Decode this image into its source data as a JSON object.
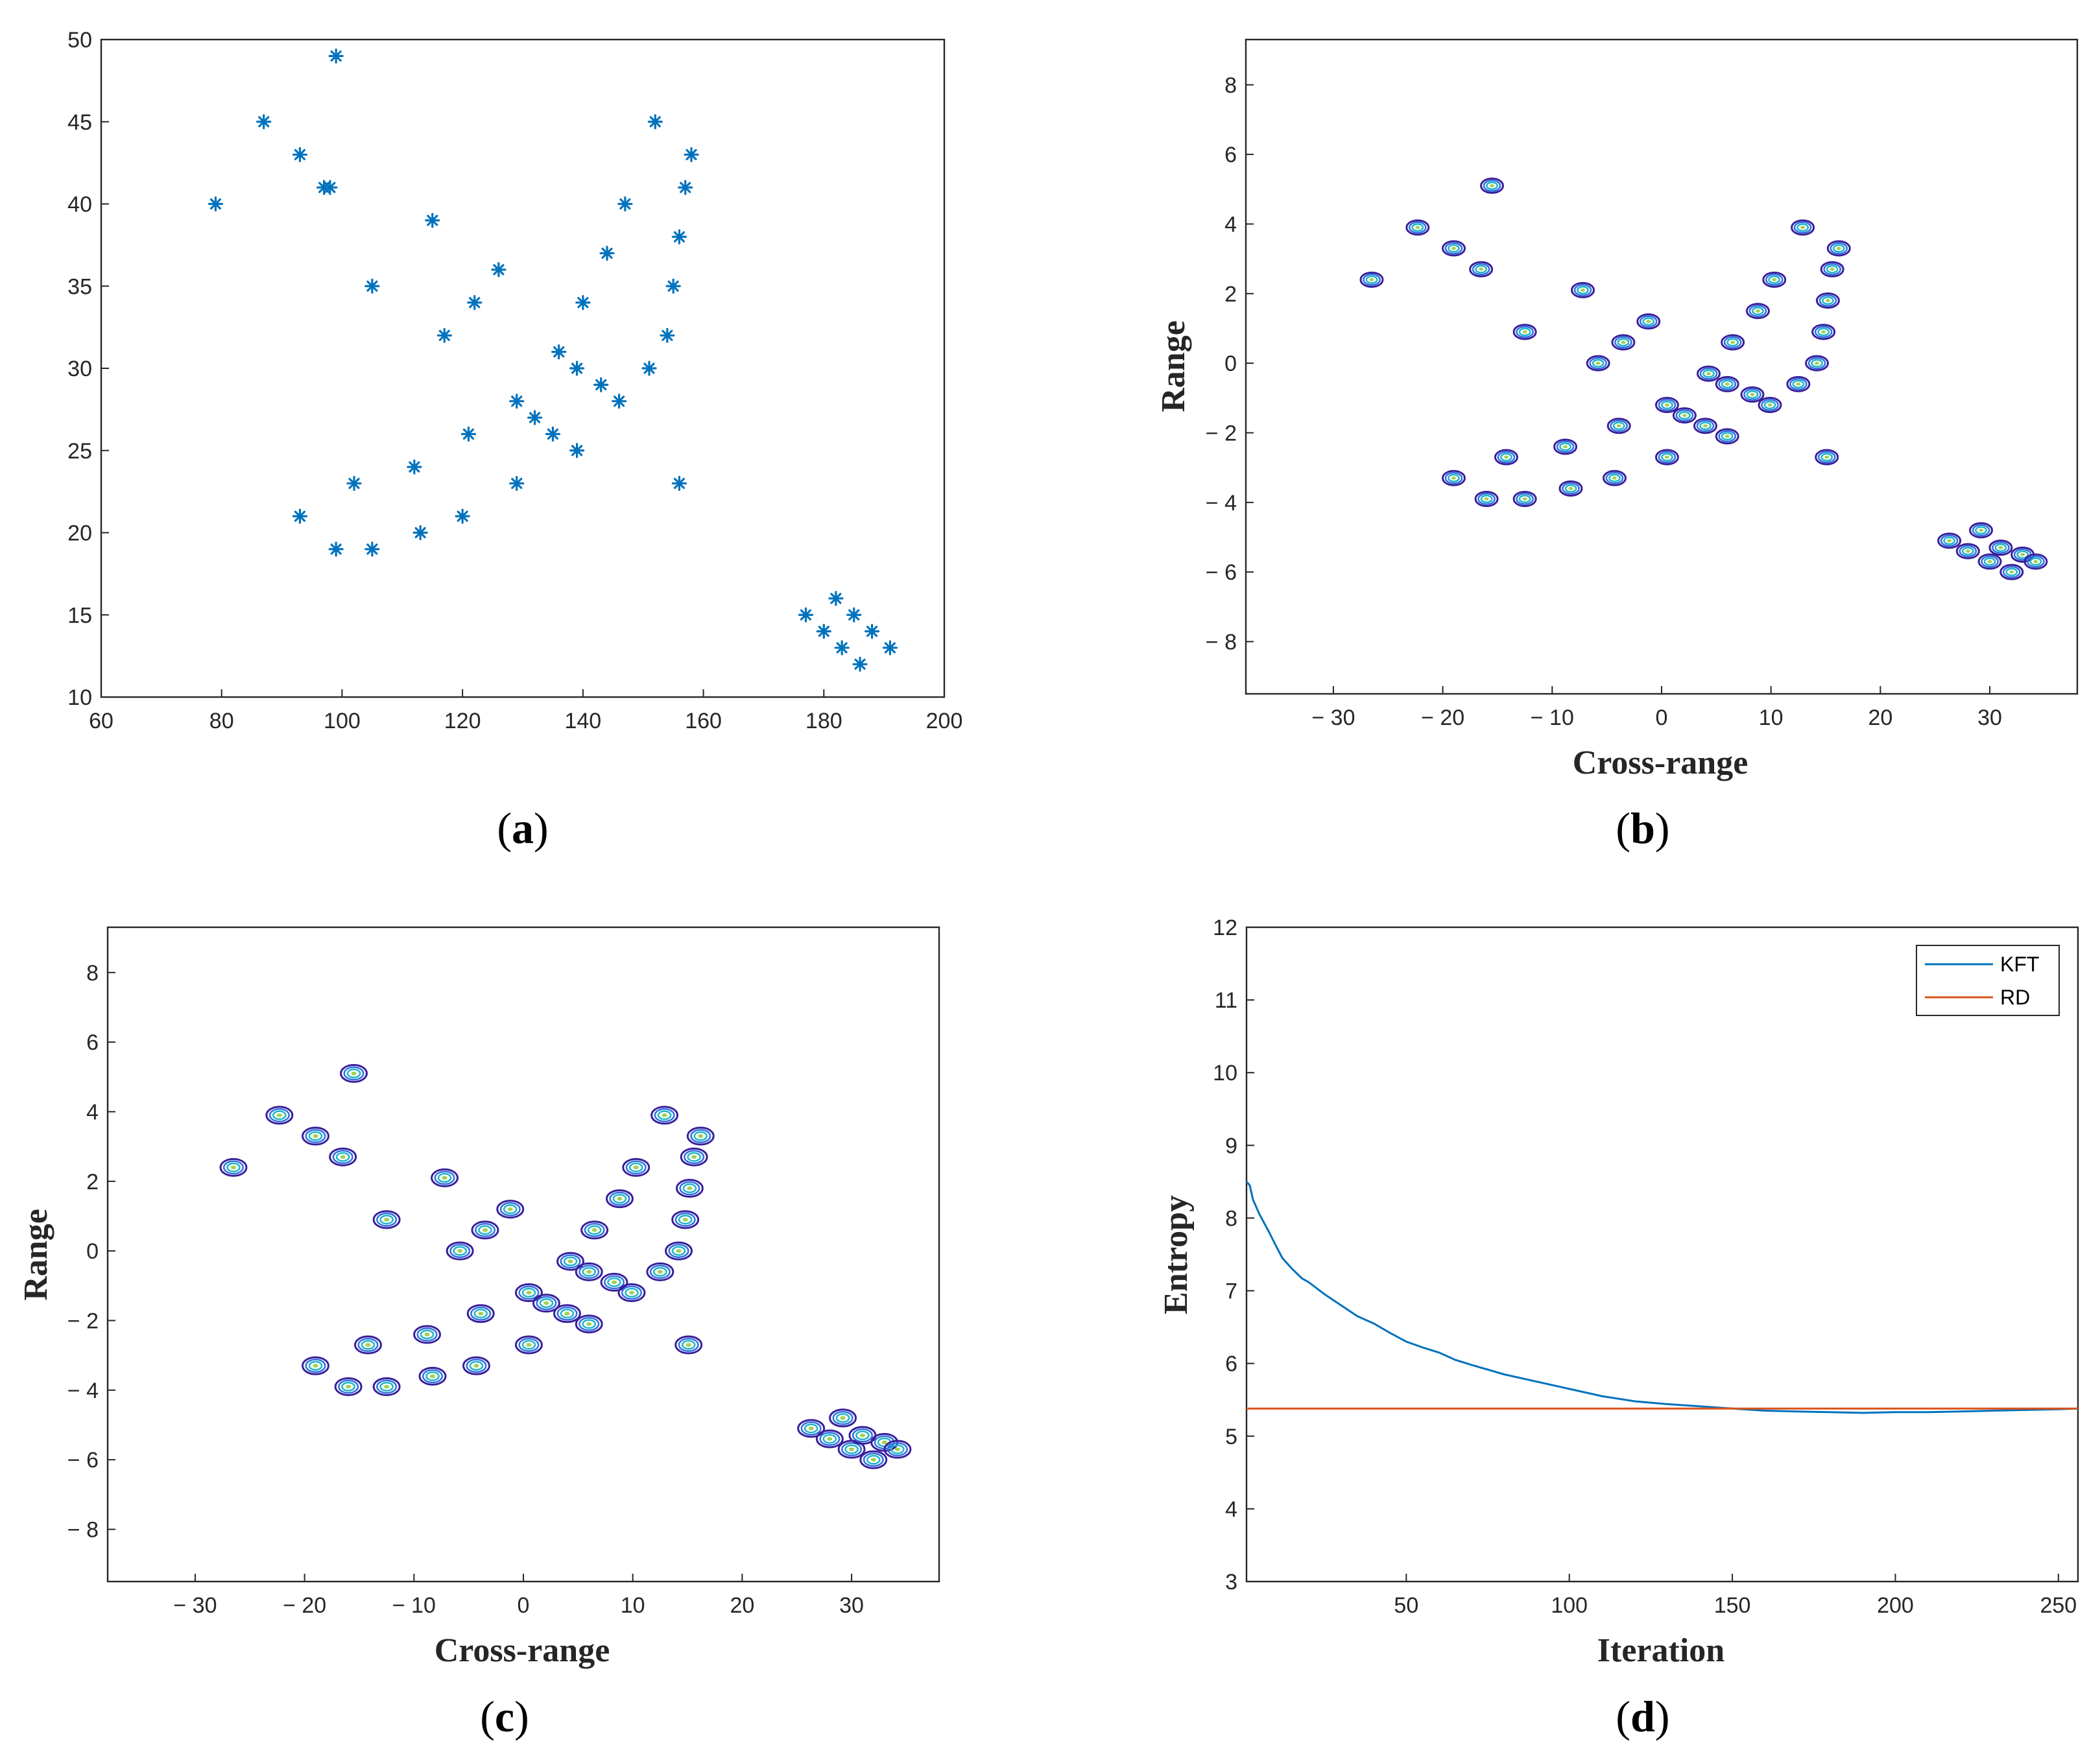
{
  "figure": {
    "panel_labels": [
      "a",
      "b",
      "c",
      "d"
    ]
  },
  "chart_data": [
    {
      "id": "a",
      "type": "scatter",
      "title": "",
      "xlabel": "",
      "ylabel": "",
      "xlim": [
        60,
        200
      ],
      "ylim": [
        10,
        50
      ],
      "xticks": [
        60,
        80,
        100,
        120,
        140,
        160,
        180,
        200
      ],
      "yticks": [
        10,
        15,
        20,
        25,
        30,
        35,
        40,
        45,
        50
      ],
      "marker": "asterisk",
      "color": "#0072BD",
      "points": [
        [
          79,
          40
        ],
        [
          87,
          45
        ],
        [
          93,
          43
        ],
        [
          97,
          41
        ],
        [
          98,
          41
        ],
        [
          99,
          49
        ],
        [
          105,
          35
        ],
        [
          115,
          39
        ],
        [
          117,
          32
        ],
        [
          122,
          34
        ],
        [
          126,
          36
        ],
        [
          102,
          23
        ],
        [
          93,
          21
        ],
        [
          99,
          19
        ],
        [
          105,
          19
        ],
        [
          112,
          24
        ],
        [
          113,
          20
        ],
        [
          120,
          21
        ],
        [
          121,
          26
        ],
        [
          129,
          28
        ],
        [
          129,
          23
        ],
        [
          132,
          27
        ],
        [
          135,
          26
        ],
        [
          136,
          31
        ],
        [
          139,
          30
        ],
        [
          139,
          25
        ],
        [
          140,
          34
        ],
        [
          143,
          29
        ],
        [
          144,
          37
        ],
        [
          146,
          28
        ],
        [
          147,
          40
        ],
        [
          151,
          30
        ],
        [
          152,
          45
        ],
        [
          154,
          32
        ],
        [
          155,
          35
        ],
        [
          156,
          38
        ],
        [
          156,
          23
        ],
        [
          157,
          41
        ],
        [
          158,
          43
        ],
        [
          177,
          15
        ],
        [
          180,
          14
        ],
        [
          182,
          16
        ],
        [
          183,
          13
        ],
        [
          185,
          15
        ],
        [
          186,
          12
        ],
        [
          188,
          14
        ],
        [
          191,
          13
        ]
      ]
    },
    {
      "id": "b",
      "type": "scatter",
      "title": "",
      "xlabel": "Cross-range",
      "ylabel": "Range",
      "xlim": [
        -38,
        38
      ],
      "ylim": [
        -9.5,
        9.3
      ],
      "xticks": [
        -30,
        -20,
        -10,
        0,
        10,
        20,
        30
      ],
      "xticklabels": [
        "− 30",
        "− 20",
        "− 10",
        "0",
        "10",
        "20",
        "30"
      ],
      "yticks": [
        -8,
        -6,
        -4,
        -2,
        0,
        2,
        4,
        6,
        8
      ],
      "yticklabels": [
        "− 8",
        "− 6",
        "− 4",
        "− 2",
        "0",
        "2",
        "4",
        "6",
        "8"
      ],
      "marker": "contour-blob",
      "points": [
        [
          -26.5,
          2.4
        ],
        [
          -22.3,
          3.9
        ],
        [
          -19,
          3.3
        ],
        [
          -16.5,
          2.7
        ],
        [
          -15.5,
          5.1
        ],
        [
          -12.5,
          0.9
        ],
        [
          -7.2,
          2.1
        ],
        [
          -5.8,
          0
        ],
        [
          -3.5,
          0.6
        ],
        [
          -1.2,
          1.2
        ],
        [
          -19,
          -3.3
        ],
        [
          -16,
          -3.9
        ],
        [
          -14.2,
          -2.7
        ],
        [
          -12.5,
          -3.9
        ],
        [
          -8.8,
          -2.4
        ],
        [
          -8.3,
          -3.6
        ],
        [
          -4.3,
          -3.3
        ],
        [
          -3.9,
          -1.8
        ],
        [
          0.5,
          -1.2
        ],
        [
          0.5,
          -2.7
        ],
        [
          2.1,
          -1.5
        ],
        [
          4.3,
          -0.3
        ],
        [
          4,
          -1.8
        ],
        [
          6,
          -0.6
        ],
        [
          6,
          -2.1
        ],
        [
          6.5,
          0.6
        ],
        [
          8.3,
          -0.9
        ],
        [
          8.8,
          1.5
        ],
        [
          9.9,
          -1.2
        ],
        [
          10.3,
          2.4
        ],
        [
          12.5,
          -0.6
        ],
        [
          12.9,
          3.9
        ],
        [
          14.2,
          0
        ],
        [
          14.8,
          0.9
        ],
        [
          15.2,
          1.8
        ],
        [
          15.1,
          -2.7
        ],
        [
          15.6,
          2.7
        ],
        [
          16.2,
          3.3
        ],
        [
          26.3,
          -5.1
        ],
        [
          28,
          -5.4
        ],
        [
          29.2,
          -4.8
        ],
        [
          30,
          -5.7
        ],
        [
          31,
          -5.3
        ],
        [
          32,
          -6
        ],
        [
          33,
          -5.5
        ],
        [
          34.2,
          -5.7
        ]
      ]
    },
    {
      "id": "c",
      "type": "scatter",
      "title": "",
      "xlabel": "Cross-range",
      "ylabel": "Range",
      "xlim": [
        -38,
        38
      ],
      "ylim": [
        -9.5,
        9.3
      ],
      "xticks": [
        -30,
        -20,
        -10,
        0,
        10,
        20,
        30
      ],
      "xticklabels": [
        "− 30",
        "− 20",
        "− 10",
        "0",
        "10",
        "20",
        "30"
      ],
      "yticks": [
        -8,
        -6,
        -4,
        -2,
        0,
        2,
        4,
        6,
        8
      ],
      "yticklabels": [
        "− 8",
        "− 6",
        "− 4",
        "− 2",
        "0",
        "2",
        "4",
        "6",
        "8"
      ],
      "marker": "contour-blob",
      "points": [
        [
          -26.5,
          2.4
        ],
        [
          -22.3,
          3.9
        ],
        [
          -19,
          3.3
        ],
        [
          -16.5,
          2.7
        ],
        [
          -15.5,
          5.1
        ],
        [
          -12.5,
          0.9
        ],
        [
          -7.2,
          2.1
        ],
        [
          -5.8,
          0
        ],
        [
          -3.5,
          0.6
        ],
        [
          -1.2,
          1.2
        ],
        [
          -19,
          -3.3
        ],
        [
          -16,
          -3.9
        ],
        [
          -14.2,
          -2.7
        ],
        [
          -12.5,
          -3.9
        ],
        [
          -8.8,
          -2.4
        ],
        [
          -8.3,
          -3.6
        ],
        [
          -4.3,
          -3.3
        ],
        [
          -3.9,
          -1.8
        ],
        [
          0.5,
          -1.2
        ],
        [
          0.5,
          -2.7
        ],
        [
          2.1,
          -1.5
        ],
        [
          4.3,
          -0.3
        ],
        [
          4,
          -1.8
        ],
        [
          6,
          -0.6
        ],
        [
          6,
          -2.1
        ],
        [
          6.5,
          0.6
        ],
        [
          8.3,
          -0.9
        ],
        [
          8.8,
          1.5
        ],
        [
          9.9,
          -1.2
        ],
        [
          10.3,
          2.4
        ],
        [
          12.5,
          -0.6
        ],
        [
          12.9,
          3.9
        ],
        [
          14.2,
          0
        ],
        [
          14.8,
          0.9
        ],
        [
          15.2,
          1.8
        ],
        [
          15.1,
          -2.7
        ],
        [
          15.6,
          2.7
        ],
        [
          16.2,
          3.3
        ],
        [
          26.3,
          -5.1
        ],
        [
          28,
          -5.4
        ],
        [
          29.2,
          -4.8
        ],
        [
          30,
          -5.7
        ],
        [
          31,
          -5.3
        ],
        [
          32,
          -6
        ],
        [
          33,
          -5.5
        ],
        [
          34.2,
          -5.7
        ]
      ]
    },
    {
      "id": "d",
      "type": "line",
      "title": "",
      "xlabel": "Iteration",
      "ylabel": "Entropy",
      "xlim": [
        1,
        256
      ],
      "ylim": [
        3,
        12
      ],
      "xticks": [
        50,
        100,
        150,
        200,
        250
      ],
      "yticks": [
        3,
        4,
        5,
        6,
        7,
        8,
        9,
        10,
        11,
        12
      ],
      "legend": "top-right",
      "series": [
        {
          "name": "KFT",
          "color": "#0072BD",
          "x": [
            1,
            2,
            3,
            5,
            8,
            10,
            12,
            15,
            18,
            20,
            25,
            30,
            35,
            40,
            45,
            50,
            55,
            60,
            65,
            70,
            80,
            90,
            100,
            110,
            120,
            130,
            140,
            150,
            160,
            170,
            180,
            190,
            200,
            210,
            220,
            230,
            240,
            250,
            256
          ],
          "y": [
            8.5,
            8.45,
            8.25,
            8.05,
            7.8,
            7.62,
            7.45,
            7.3,
            7.17,
            7.12,
            6.95,
            6.8,
            6.65,
            6.55,
            6.42,
            6.3,
            6.22,
            6.15,
            6.05,
            5.98,
            5.85,
            5.75,
            5.65,
            5.55,
            5.48,
            5.44,
            5.41,
            5.38,
            5.35,
            5.34,
            5.33,
            5.32,
            5.33,
            5.33,
            5.34,
            5.35,
            5.36,
            5.37,
            5.38
          ]
        },
        {
          "name": "RD",
          "color": "#D95319",
          "x": [
            1,
            256
          ],
          "y": [
            5.38,
            5.38
          ]
        }
      ]
    }
  ]
}
